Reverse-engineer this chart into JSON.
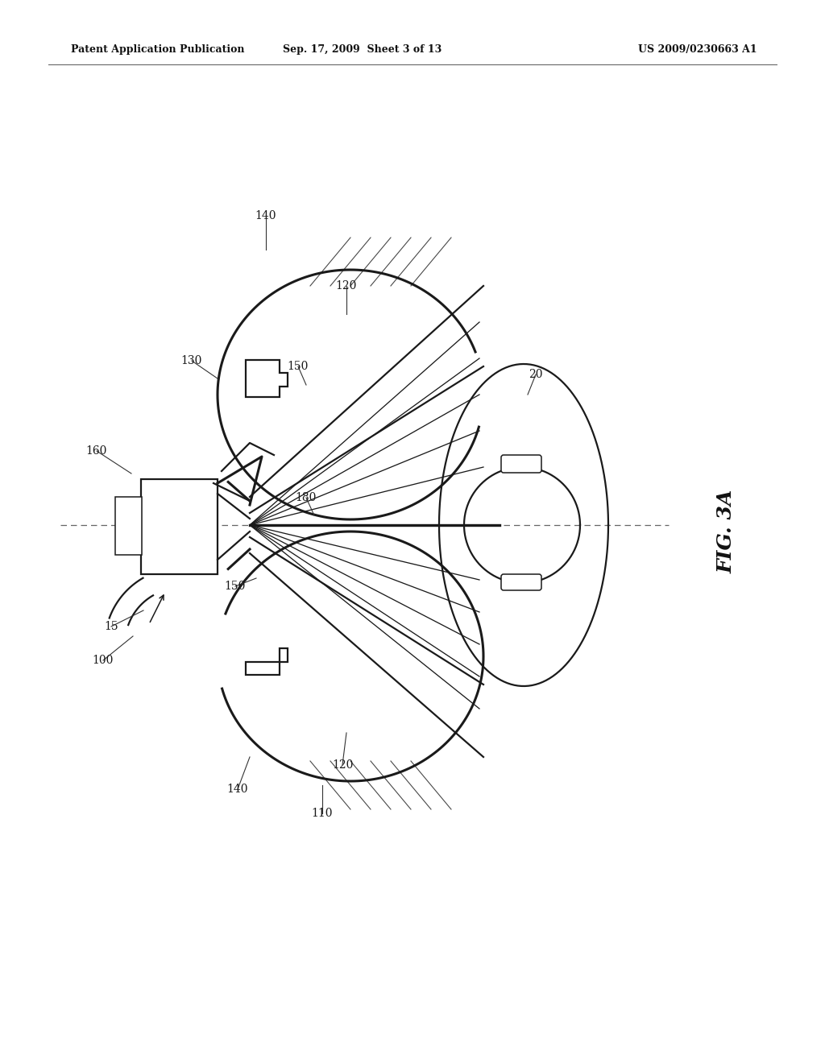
{
  "background_color": "#ffffff",
  "header_left": "Patent Application Publication",
  "header_center": "Sep. 17, 2009  Sheet 3 of 13",
  "header_right": "US 2009/0230663 A1",
  "fig_label": "FIG. 3A",
  "line_color": "#1a1a1a",
  "label_color": "#1a1a1a"
}
